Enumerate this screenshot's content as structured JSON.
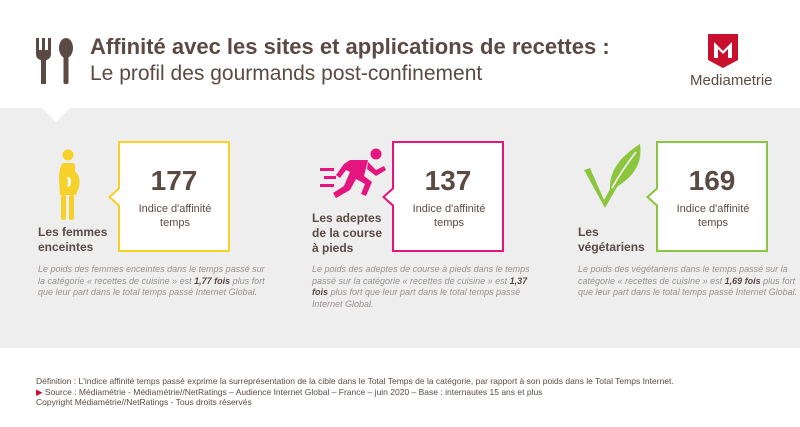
{
  "header": {
    "icon": "cutlery-icon",
    "title_line1": "Affinité avec les sites et applications de recettes :",
    "title_line2": "Le profil des gourmands post-confinement",
    "brand_name": "Mediametrie",
    "brand_color": "#c8102e"
  },
  "segments": [
    {
      "icon": "pregnant-woman-icon",
      "color": "#f5d12a",
      "value": "177",
      "index_label": "Indice d'affinité temps",
      "label": "Les femmes enceintes",
      "desc_before": "Le poids des femmes enceintes dans le temps passé sur la catégorie « recettes de cuisine » est ",
      "desc_bold": "1,77 fois",
      "desc_after": " plus fort que leur part dans le total temps passé Internet Global."
    },
    {
      "icon": "runner-icon",
      "color": "#e5157f",
      "value": "137",
      "index_label": "Indice d'affinité temps",
      "label": "Les adeptes de la course à pieds",
      "desc_before": "Le poids des adeptes de course à pieds dans le temps passé sur la catégorie « recettes de cuisine » est ",
      "desc_bold": "1,37 fois",
      "desc_after": " plus fort que leur part dans le total temps passé Internet Global."
    },
    {
      "icon": "leaf-check-icon",
      "color": "#8cc63f",
      "value": "169",
      "index_label": "Indice d'affinité temps",
      "label": "Les végétariens",
      "desc_before": "Le poids des végétariens dans le temps passé sur la catégorie « recettes de cuisine » est ",
      "desc_bold": "1,69 fois",
      "desc_after": " plus fort que leur part dans le total temps passé Internet Global."
    }
  ],
  "footer": {
    "definition": "Définition : L'indice affinité temps passé exprime la surreprésentation de la cible dans le Total Temps de la catégorie, par rapport à son poids dans le Total Temps Internet.",
    "arrow": "▶",
    "source": " Source : Médiamétrie - Médiamétrie//NetRatings – Audience Internet Global – France – juin 2020 – Base : internautes 15 ans et plus",
    "copyright": "Copyright Médiamétrie//NetRatings - Tous droits réservés"
  }
}
